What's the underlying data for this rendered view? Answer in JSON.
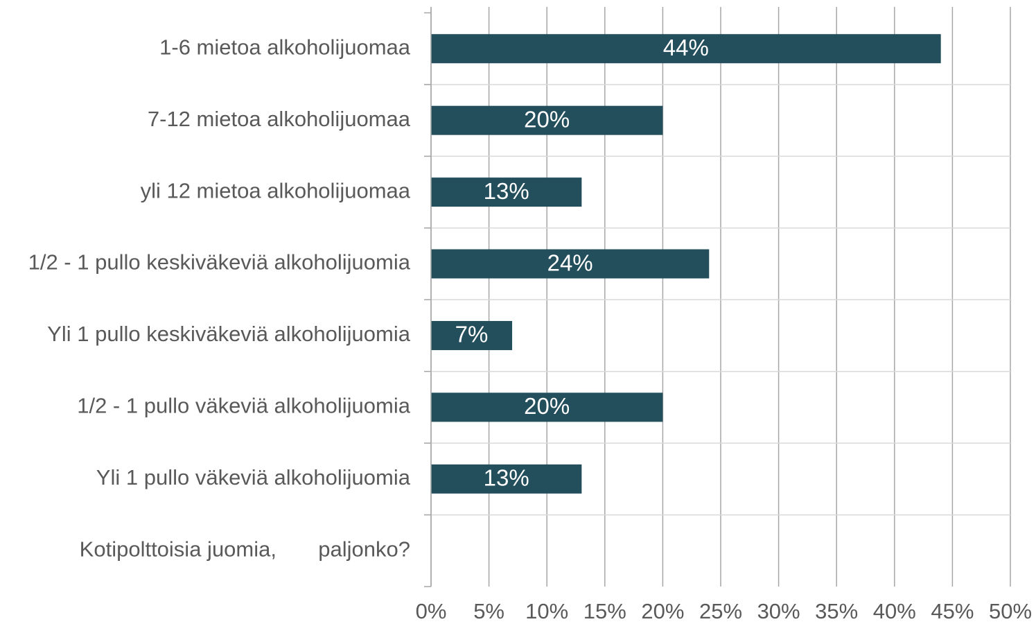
{
  "chart_data": {
    "type": "barh",
    "categories": [
      "1-6 mietoa alkoholijuomaa",
      "7-12 mietoa alkoholijuomaa",
      "yli 12 mietoa alkoholijuomaa",
      "1/2 - 1 pullo keskiväkeviä alkoholijuomia",
      "Yli 1 pullo keskiväkeviä alkoholijuomia",
      "1/2 - 1 pullo väkeviä alkoholijuomia",
      "Yli 1 pullo väkeviä alkoholijuomia",
      "Kotipolttoisia juomia,       paljonko?"
    ],
    "values": [
      44,
      20,
      13,
      24,
      7,
      20,
      13,
      null
    ],
    "value_labels": [
      "44%",
      "20%",
      "13%",
      "24%",
      "7%",
      "20%",
      "13%",
      null
    ],
    "color": "#234e5c",
    "xlim": [
      0,
      50
    ],
    "xticks": [
      {
        "value": 0,
        "label": "0%"
      },
      {
        "value": 5,
        "label": "5%"
      },
      {
        "value": 10,
        "label": "10%"
      },
      {
        "value": 15,
        "label": "15%"
      },
      {
        "value": 20,
        "label": "20%"
      },
      {
        "value": 25,
        "label": "25%"
      },
      {
        "value": 30,
        "label": "30%"
      },
      {
        "value": 35,
        "label": "35%"
      },
      {
        "value": 40,
        "label": "40%"
      },
      {
        "value": 45,
        "label": "45%"
      },
      {
        "value": 50,
        "label": "50%"
      }
    ],
    "grid": true
  }
}
